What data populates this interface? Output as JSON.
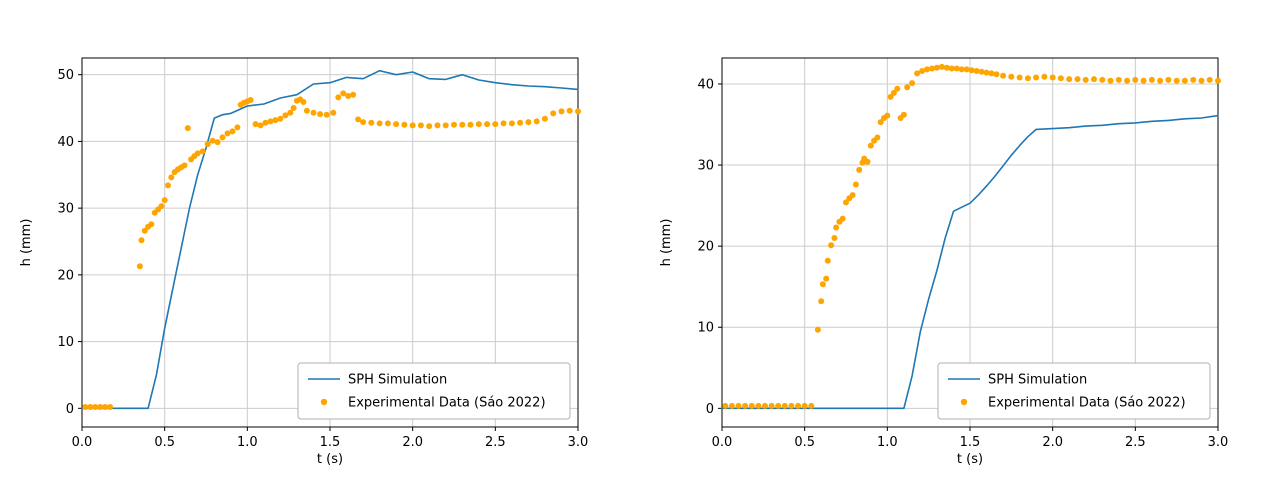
{
  "figure": {
    "background": "#ffffff",
    "grid_color": "#cccccc",
    "spine_color": "#000000",
    "legend_border_color": "#b0b0b0"
  },
  "chart_data": [
    {
      "type": "line+scatter",
      "title": "",
      "xlabel": "t (s)",
      "ylabel": "h (mm)",
      "xlim": [
        0.0,
        3.0
      ],
      "ylim": [
        -2.8,
        52.5
      ],
      "xtick_values": [
        0.0,
        0.5,
        1.0,
        1.5,
        2.0,
        2.5,
        3.0
      ],
      "xtick_labels": [
        "0.0",
        "0.5",
        "1.0",
        "1.5",
        "2.0",
        "2.5",
        "3.0"
      ],
      "ytick_values": [
        0,
        10,
        20,
        30,
        40,
        50
      ],
      "ytick_labels": [
        "0",
        "10",
        "20",
        "30",
        "40",
        "50"
      ],
      "grid": true,
      "legend_position": "lower right",
      "series": [
        {
          "name": "SPH Simulation",
          "type": "line",
          "color": "#1f77b4",
          "x": [
            0.0,
            0.4,
            0.45,
            0.5,
            0.55,
            0.6,
            0.65,
            0.7,
            0.75,
            0.8,
            0.85,
            0.9,
            1.0,
            1.1,
            1.2,
            1.3,
            1.4,
            1.5,
            1.6,
            1.7,
            1.8,
            1.9,
            2.0,
            2.1,
            2.2,
            2.3,
            2.4,
            2.5,
            2.6,
            2.7,
            2.8,
            2.9,
            3.0
          ],
          "y": [
            0,
            0,
            5,
            12,
            18,
            24,
            30,
            35,
            39,
            43.5,
            44.0,
            44.2,
            45.3,
            45.6,
            46.5,
            47.0,
            48.6,
            48.8,
            49.6,
            49.4,
            50.6,
            50.0,
            50.4,
            49.4,
            49.3,
            50.0,
            49.2,
            48.8,
            48.5,
            48.3,
            48.2,
            48.0,
            47.8
          ]
        },
        {
          "name": "Experimental Data (Sáo 2022)",
          "type": "scatter",
          "color": "#ffa500",
          "x": [
            0.02,
            0.05,
            0.08,
            0.11,
            0.14,
            0.17,
            0.35,
            0.36,
            0.38,
            0.4,
            0.42,
            0.44,
            0.46,
            0.48,
            0.5,
            0.52,
            0.54,
            0.56,
            0.58,
            0.6,
            0.62,
            0.64,
            0.66,
            0.68,
            0.7,
            0.73,
            0.76,
            0.79,
            0.82,
            0.85,
            0.88,
            0.91,
            0.94,
            0.96,
            0.98,
            1.0,
            1.02,
            1.05,
            1.08,
            1.11,
            1.14,
            1.17,
            1.2,
            1.23,
            1.26,
            1.28,
            1.3,
            1.32,
            1.34,
            1.36,
            1.4,
            1.44,
            1.48,
            1.52,
            1.55,
            1.58,
            1.61,
            1.64,
            1.67,
            1.7,
            1.75,
            1.8,
            1.85,
            1.9,
            1.95,
            2.0,
            2.05,
            2.1,
            2.15,
            2.2,
            2.25,
            2.3,
            2.35,
            2.4,
            2.45,
            2.5,
            2.55,
            2.6,
            2.65,
            2.7,
            2.75,
            2.8,
            2.85,
            2.9,
            2.95,
            3.0
          ],
          "y": [
            0.2,
            0.2,
            0.2,
            0.2,
            0.2,
            0.2,
            21.3,
            25.2,
            26.6,
            27.2,
            27.6,
            29.3,
            29.8,
            30.3,
            31.2,
            33.4,
            34.6,
            35.4,
            35.8,
            36.1,
            36.4,
            42.0,
            37.3,
            37.8,
            38.2,
            38.5,
            39.6,
            40.1,
            39.9,
            40.6,
            41.2,
            41.5,
            42.1,
            45.5,
            45.8,
            46.0,
            46.2,
            42.6,
            42.4,
            42.8,
            43.0,
            43.2,
            43.4,
            43.9,
            44.3,
            45.0,
            46.1,
            46.3,
            45.9,
            44.6,
            44.3,
            44.1,
            44.0,
            44.3,
            46.6,
            47.2,
            46.8,
            47.0,
            43.3,
            42.9,
            42.8,
            42.7,
            42.7,
            42.6,
            42.5,
            42.4,
            42.4,
            42.3,
            42.4,
            42.4,
            42.5,
            42.5,
            42.5,
            42.6,
            42.6,
            42.6,
            42.7,
            42.7,
            42.8,
            42.9,
            43.0,
            43.4,
            44.2,
            44.5,
            44.6,
            44.5
          ]
        }
      ]
    },
    {
      "type": "line+scatter",
      "title": "",
      "xlabel": "t (s)",
      "ylabel": "h (mm)",
      "xlim": [
        0.0,
        3.0
      ],
      "ylim": [
        -2.3,
        43.2
      ],
      "xtick_values": [
        0.0,
        0.5,
        1.0,
        1.5,
        2.0,
        2.5,
        3.0
      ],
      "xtick_labels": [
        "0.0",
        "0.5",
        "1.0",
        "1.5",
        "2.0",
        "2.5",
        "3.0"
      ],
      "ytick_values": [
        0,
        10,
        20,
        30,
        40
      ],
      "ytick_labels": [
        "0",
        "10",
        "20",
        "30",
        "40"
      ],
      "grid": true,
      "legend_position": "lower right",
      "series": [
        {
          "name": "SPH Simulation",
          "type": "line",
          "color": "#1f77b4",
          "x": [
            0.0,
            1.1,
            1.15,
            1.2,
            1.25,
            1.3,
            1.35,
            1.4,
            1.45,
            1.5,
            1.55,
            1.6,
            1.65,
            1.7,
            1.75,
            1.8,
            1.85,
            1.9,
            2.0,
            2.1,
            2.2,
            2.3,
            2.4,
            2.5,
            2.6,
            2.7,
            2.8,
            2.9,
            3.0
          ],
          "y": [
            0,
            0,
            4.0,
            9.5,
            13.5,
            17.0,
            21.0,
            24.3,
            24.8,
            25.3,
            26.3,
            27.4,
            28.6,
            29.9,
            31.2,
            32.4,
            33.5,
            34.4,
            34.5,
            34.6,
            34.8,
            34.9,
            35.1,
            35.2,
            35.4,
            35.5,
            35.7,
            35.8,
            36.1
          ]
        },
        {
          "name": "Experimental Data (Sáo 2022)",
          "type": "scatter",
          "color": "#ffa500",
          "x": [
            0.02,
            0.06,
            0.1,
            0.14,
            0.18,
            0.22,
            0.26,
            0.3,
            0.34,
            0.38,
            0.42,
            0.46,
            0.5,
            0.54,
            0.58,
            0.6,
            0.61,
            0.63,
            0.64,
            0.66,
            0.68,
            0.69,
            0.71,
            0.73,
            0.75,
            0.77,
            0.79,
            0.81,
            0.83,
            0.85,
            0.86,
            0.88,
            0.9,
            0.92,
            0.94,
            0.96,
            0.98,
            1.0,
            1.02,
            1.04,
            1.06,
            1.08,
            1.1,
            1.12,
            1.15,
            1.18,
            1.21,
            1.24,
            1.27,
            1.3,
            1.33,
            1.36,
            1.39,
            1.42,
            1.45,
            1.48,
            1.51,
            1.54,
            1.57,
            1.6,
            1.63,
            1.66,
            1.7,
            1.75,
            1.8,
            1.85,
            1.9,
            1.95,
            2.0,
            2.05,
            2.1,
            2.15,
            2.2,
            2.25,
            2.3,
            2.35,
            2.4,
            2.45,
            2.5,
            2.55,
            2.6,
            2.65,
            2.7,
            2.75,
            2.8,
            2.85,
            2.9,
            2.95,
            3.0
          ],
          "y": [
            0.3,
            0.3,
            0.3,
            0.3,
            0.3,
            0.3,
            0.3,
            0.3,
            0.3,
            0.3,
            0.3,
            0.3,
            0.3,
            0.3,
            9.7,
            13.2,
            15.3,
            16.0,
            18.2,
            20.1,
            21.0,
            22.3,
            23.0,
            23.4,
            25.4,
            25.9,
            26.3,
            27.6,
            29.4,
            30.3,
            30.8,
            30.4,
            32.4,
            33.0,
            33.4,
            35.3,
            35.8,
            36.1,
            38.4,
            38.9,
            39.4,
            35.8,
            36.2,
            39.6,
            40.1,
            41.3,
            41.6,
            41.8,
            41.9,
            42.0,
            42.1,
            42.0,
            41.9,
            41.9,
            41.8,
            41.8,
            41.7,
            41.6,
            41.5,
            41.4,
            41.3,
            41.2,
            41.0,
            40.9,
            40.8,
            40.7,
            40.8,
            40.9,
            40.8,
            40.7,
            40.6,
            40.6,
            40.5,
            40.6,
            40.5,
            40.4,
            40.5,
            40.4,
            40.5,
            40.4,
            40.5,
            40.4,
            40.5,
            40.4,
            40.4,
            40.5,
            40.4,
            40.5,
            40.4
          ]
        }
      ]
    }
  ]
}
